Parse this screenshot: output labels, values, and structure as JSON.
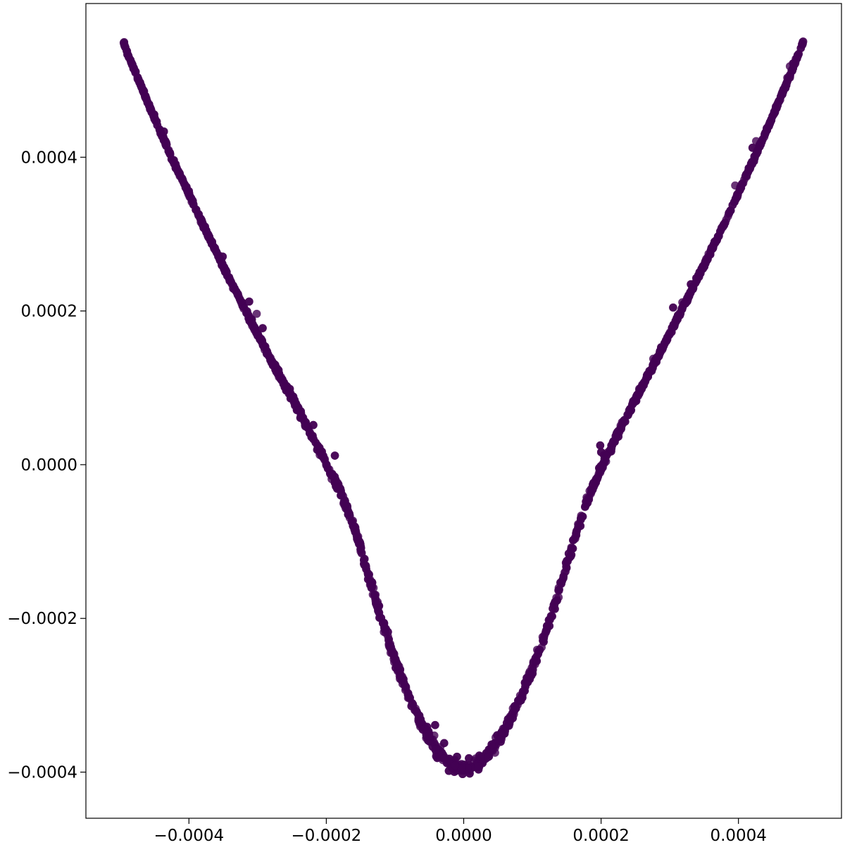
{
  "chart_data": {
    "type": "scatter",
    "title": "",
    "xlabel": "",
    "ylabel": "",
    "xlim": [
      -0.00055,
      0.00055
    ],
    "ylim": [
      -0.00046,
      0.0006
    ],
    "x_ticks": [
      {
        "value": -0.0004,
        "label": "−0.0004"
      },
      {
        "value": -0.0002,
        "label": "−0.0002"
      },
      {
        "value": 0.0,
        "label": "0.0000"
      },
      {
        "value": 0.0002,
        "label": "0.0002"
      },
      {
        "value": 0.0004,
        "label": "0.0004"
      }
    ],
    "y_ticks": [
      {
        "value": -0.0004,
        "label": "−0.0004"
      },
      {
        "value": -0.0002,
        "label": "−0.0002"
      },
      {
        "value": 0.0,
        "label": "0.0000"
      },
      {
        "value": 0.0002,
        "label": "0.0002"
      },
      {
        "value": 0.0004,
        "label": "0.0004"
      }
    ],
    "grid": false,
    "legend": "none",
    "marker_color": "#440154",
    "series": [
      {
        "shape": "parabola",
        "x_range": [
          -0.000495,
          0.000495
        ],
        "points": [
          [
            -0.000495,
            0.000548
          ],
          [
            -0.00048,
            0.000515
          ],
          [
            -0.00046,
            0.000472
          ],
          [
            -0.00044,
            0.00043
          ],
          [
            -0.00042,
            0.00039
          ],
          [
            -0.0004,
            0.000352
          ],
          [
            -0.00038,
            0.000313
          ],
          [
            -0.00036,
            0.000276
          ],
          [
            -0.00034,
            0.00024
          ],
          [
            -0.00032,
            0.000205
          ],
          [
            -0.0003,
            0.00017
          ],
          [
            -0.00028,
            0.000136
          ],
          [
            -0.00026,
            0.000103
          ],
          [
            -0.00024,
            7e-05
          ],
          [
            -0.00022,
            3.6e-05
          ],
          [
            -0.0002,
            2e-06
          ],
          [
            -0.00018,
            -3.5e-05
          ],
          [
            -0.00016,
            -8e-05
          ],
          [
            -0.00014,
            -0.00014
          ],
          [
            -0.00012,
            -0.0002
          ],
          [
            -0.0001,
            -0.000255
          ],
          [
            -8e-05,
            -0.0003
          ],
          [
            -6e-05,
            -0.00034
          ],
          [
            -4e-05,
            -0.00037
          ],
          [
            -2e-05,
            -0.00039
          ],
          [
            0.0,
            -0.000398
          ],
          [
            2e-05,
            -0.00039
          ],
          [
            4e-05,
            -0.000372
          ],
          [
            6e-05,
            -0.000345
          ],
          [
            8e-05,
            -0.00031
          ],
          [
            0.0001,
            -0.000265
          ],
          [
            0.00012,
            -0.000215
          ],
          [
            0.00014,
            -0.00016
          ],
          [
            0.00016,
            -0.0001
          ],
          [
            0.00018,
            -4.5e-05
          ],
          [
            0.0002,
            -5e-06
          ],
          [
            0.00022,
            3.2e-05
          ],
          [
            0.00024,
            6.8e-05
          ],
          [
            0.00026,
            0.000102
          ],
          [
            0.00028,
            0.000136
          ],
          [
            0.0003,
            0.000171
          ],
          [
            0.00032,
            0.000206
          ],
          [
            0.00034,
            0.000242
          ],
          [
            0.00036,
            0.000278
          ],
          [
            0.00038,
            0.000315
          ],
          [
            0.0004,
            0.000354
          ],
          [
            0.00042,
            0.000393
          ],
          [
            0.00044,
            0.000433
          ],
          [
            0.00046,
            0.000475
          ],
          [
            0.00048,
            0.000518
          ],
          [
            0.000495,
            0.000552
          ]
        ]
      }
    ]
  }
}
